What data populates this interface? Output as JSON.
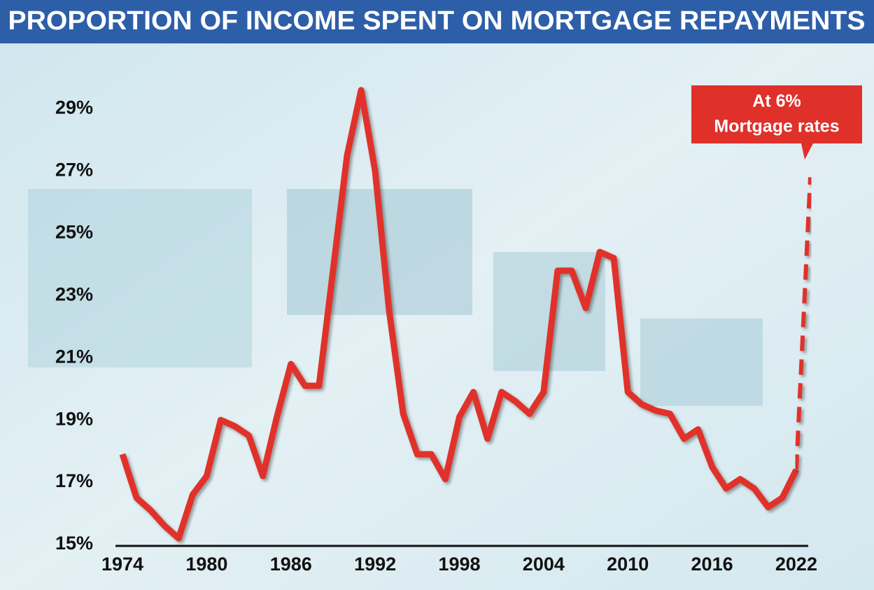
{
  "chart_data": {
    "type": "line",
    "title": "PROPORTION OF INCOME SPENT ON MORTGAGE REPAYMENTS",
    "annotation": [
      "At 6%",
      "Mortgage rates"
    ],
    "series": [
      {
        "color": "#e0302a",
        "style": "solid",
        "x": [
          1974,
          1975,
          1976,
          1977,
          1978,
          1979,
          1980,
          1981,
          1982,
          1983,
          1984,
          1985,
          1986,
          1987,
          1988,
          1989,
          1990,
          1991,
          1992,
          1993,
          1994,
          1995,
          1996,
          1997,
          1998,
          1999,
          2000,
          2001,
          2002,
          2003,
          2004,
          2005,
          2006,
          2007,
          2008,
          2009,
          2010,
          2011,
          2012,
          2013,
          2014,
          2015,
          2016,
          2017,
          2018,
          2019,
          2020,
          2021,
          2022
        ],
        "values": [
          17.9,
          16.5,
          16.1,
          15.6,
          15.2,
          16.6,
          17.2,
          19.0,
          18.8,
          18.5,
          17.2,
          19.1,
          20.8,
          20.1,
          20.1,
          23.8,
          27.5,
          29.6,
          27.0,
          22.5,
          19.2,
          17.9,
          17.9,
          17.1,
          19.1,
          19.9,
          18.4,
          19.9,
          19.6,
          19.2,
          19.9,
          23.8,
          23.8,
          22.6,
          24.4,
          24.2,
          19.9,
          19.5,
          19.3,
          19.2,
          18.4,
          18.7,
          17.5,
          16.8,
          17.1,
          16.8,
          16.2,
          16.5,
          17.4
        ]
      },
      {
        "color": "#e0302a",
        "style": "dashed",
        "x": [
          2022,
          2023
        ],
        "values": [
          17.4,
          26.8
        ]
      }
    ],
    "xlim": [
      1974,
      2023
    ],
    "xticks": [
      1974,
      1980,
      1986,
      1992,
      1998,
      2004,
      2010,
      2016,
      2022
    ],
    "ylim": [
      15,
      30
    ],
    "yticks": [
      {
        "value": 15,
        "label": "15%"
      },
      {
        "value": 17,
        "label": "17%"
      },
      {
        "value": 19,
        "label": "19%"
      },
      {
        "value": 21,
        "label": "21%"
      },
      {
        "value": 23,
        "label": "23%"
      },
      {
        "value": 25,
        "label": "25%"
      },
      {
        "value": 27,
        "label": "27%"
      },
      {
        "value": 29,
        "label": "29%"
      }
    ]
  }
}
